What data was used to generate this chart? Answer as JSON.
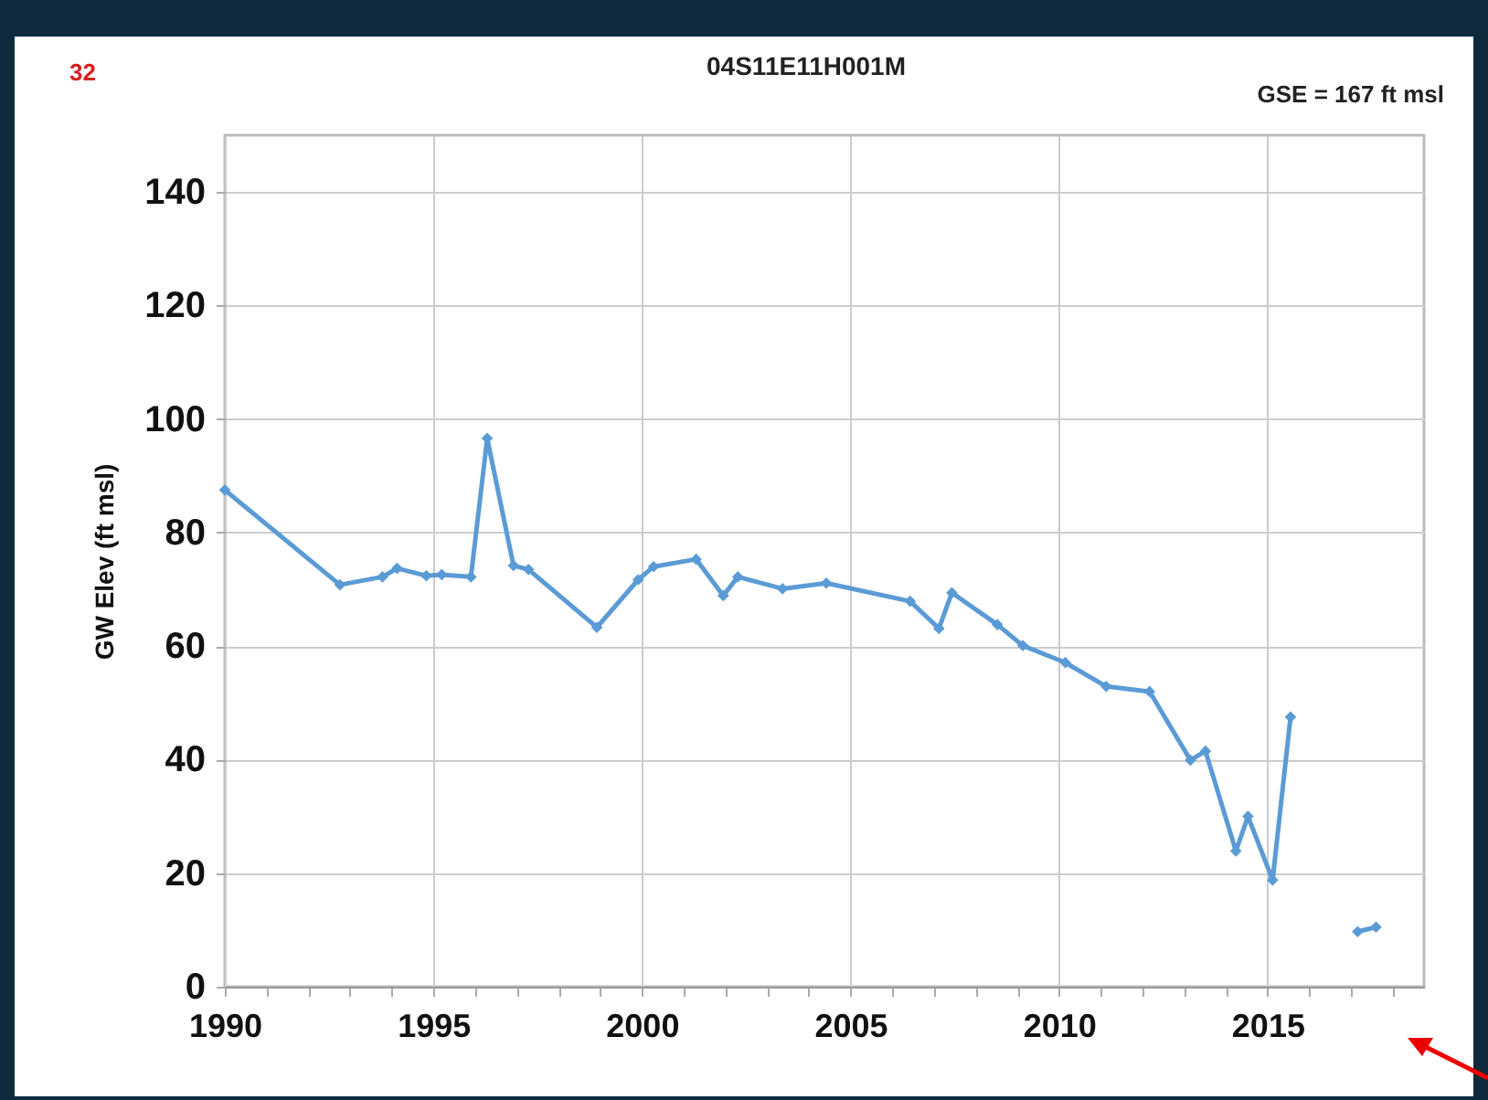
{
  "chart_data": {
    "type": "line",
    "title": "04S11E11H001M",
    "ylabel": "GW Elev (ft msl)",
    "annotations": [
      "32",
      "GSE = 167 ft msl"
    ],
    "x": [
      1990.0,
      1992.76,
      1993.78,
      1994.13,
      1994.83,
      1995.2,
      1995.9,
      1996.29,
      1996.92,
      1997.28,
      1998.92,
      1999.91,
      2000.28,
      2001.3,
      2001.95,
      2002.3,
      2003.37,
      2004.42,
      2006.43,
      2007.12,
      2007.43,
      2008.52,
      2009.13,
      2010.15,
      2011.13,
      2012.17,
      2013.15,
      2013.51,
      2014.24,
      2014.53,
      2015.12,
      2015.55,
      2016.5,
      2017.16,
      2017.6
    ],
    "series": [
      {
        "color": "#5b9bd5",
        "values": [
          87.5,
          70.8,
          72.2,
          73.7,
          72.4,
          72.6,
          72.2,
          96.6,
          74.2,
          73.5,
          63.3,
          71.7,
          74.0,
          75.3,
          68.9,
          72.2,
          70.1,
          71.1,
          67.9,
          63.1,
          69.4,
          63.8,
          60.1,
          57.1,
          52.9,
          52.0,
          39.9,
          41.5,
          23.9,
          30.0,
          18.8,
          47.5,
          null,
          9.7,
          10.5
        ]
      }
    ],
    "xlim": [
      1990,
      2018.75
    ],
    "xticks": [
      1990,
      {
        "value": 1991,
        "label": null
      },
      {
        "value": 1992,
        "label": null
      },
      {
        "value": 1993,
        "label": null
      },
      {
        "value": 1994,
        "label": null
      },
      1995,
      {
        "value": 1996,
        "label": null
      },
      {
        "value": 1997,
        "label": null
      },
      {
        "value": 1998,
        "label": null
      },
      {
        "value": 1999,
        "label": null
      },
      2000,
      {
        "value": 2001,
        "label": null
      },
      {
        "value": 2002,
        "label": null
      },
      {
        "value": 2003,
        "label": null
      },
      {
        "value": 2004,
        "label": null
      },
      2005,
      {
        "value": 2006,
        "label": null
      },
      {
        "value": 2007,
        "label": null
      },
      {
        "value": 2008,
        "label": null
      },
      {
        "value": 2009,
        "label": null
      },
      2010,
      {
        "value": 2011,
        "label": null
      },
      {
        "value": 2012,
        "label": null
      },
      {
        "value": 2013,
        "label": null
      },
      {
        "value": 2014,
        "label": null
      },
      2015,
      {
        "value": 2016,
        "label": null
      },
      {
        "value": 2017,
        "label": null
      },
      {
        "value": 2018,
        "label": null
      }
    ],
    "ylim": [
      0,
      150
    ],
    "yticks": [
      0,
      20,
      40,
      60,
      80,
      100,
      120,
      140
    ],
    "grid": true,
    "marker": "diamond",
    "line_style": "solid"
  }
}
